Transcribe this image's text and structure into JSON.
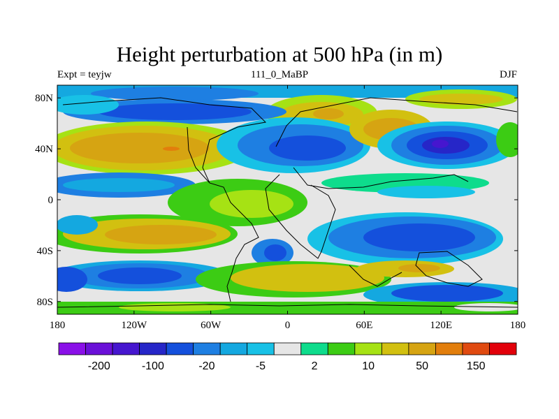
{
  "chart_data": {
    "type": "heatmap",
    "title": "Height perturbation at 500 hPa (in m)",
    "subtitle_left": "Expt = teyjw",
    "subtitle_center": "111_0_MaBP",
    "subtitle_right": "DJF",
    "x_ticks": [
      "180",
      "120W",
      "60W",
      "0",
      "60E",
      "120E",
      "180"
    ],
    "x_tick_values": [
      -180,
      -120,
      -60,
      0,
      60,
      120,
      180
    ],
    "y_ticks": [
      "80N",
      "40N",
      "0",
      "40S",
      "80S"
    ],
    "y_tick_values": [
      80,
      40,
      0,
      -40,
      -80
    ],
    "xlim": [
      -180,
      180
    ],
    "ylim": [
      -90,
      90
    ],
    "colorbar": {
      "colors": [
        "#8a10e8",
        "#6a10d8",
        "#4616cf",
        "#2626c8",
        "#1450dc",
        "#1e7fe2",
        "#14a8e0",
        "#18c1e6",
        "#e6e6e6",
        "#0edc8c",
        "#3ccc14",
        "#a6e214",
        "#d2c010",
        "#d6a412",
        "#e27e0c",
        "#e04a10",
        "#e2000a"
      ],
      "labels": [
        "-200",
        "-100",
        "-20",
        "-5",
        "2",
        "10",
        "50",
        "150"
      ]
    }
  }
}
